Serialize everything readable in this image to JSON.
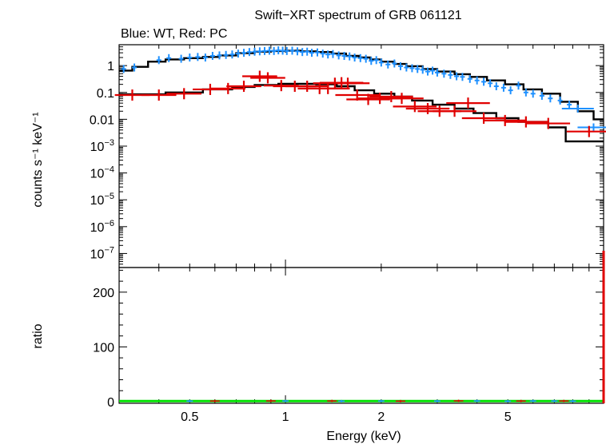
{
  "title": "Swift−XRT spectrum of GRB 061121",
  "subtitle": "Blue: WT, Red: PC",
  "colors": {
    "wt": "#1e90ff",
    "pc": "#e00000",
    "model": "#000000",
    "ratio_line": "#00e000"
  },
  "chart_data": [
    {
      "type": "scatter",
      "panel": "spectrum",
      "xlabel": "Energy (keV)",
      "ylabel": "counts s⁻¹ keV⁻¹",
      "xscale": "log",
      "yscale": "log",
      "xlim": [
        0.3,
        10
      ],
      "ylim": [
        3e-08,
        6
      ],
      "y_ticks": [
        {
          "value": 1,
          "label": "1"
        },
        {
          "value": 0.1,
          "label": "0.1"
        },
        {
          "value": 0.01,
          "label": "0.01"
        },
        {
          "value": 0.001,
          "base": "10",
          "exp": "−3"
        },
        {
          "value": 0.0001,
          "base": "10",
          "exp": "−4"
        },
        {
          "value": 1e-05,
          "base": "10",
          "exp": "−5"
        },
        {
          "value": 1e-06,
          "base": "10",
          "exp": "−6"
        },
        {
          "value": 1e-07,
          "base": "10",
          "exp": "−7"
        }
      ],
      "series": [
        {
          "name": "WT",
          "color": "#1e90ff",
          "points": [
            [
              0.31,
              0.75
            ],
            [
              0.335,
              0.85
            ],
            [
              0.4,
              1.6
            ],
            [
              0.43,
              1.9
            ],
            [
              0.47,
              1.8
            ],
            [
              0.5,
              2.0
            ],
            [
              0.53,
              2.1
            ],
            [
              0.56,
              2.0
            ],
            [
              0.59,
              2.3
            ],
            [
              0.62,
              2.4
            ],
            [
              0.65,
              2.5
            ],
            [
              0.68,
              2.6
            ],
            [
              0.71,
              2.8
            ],
            [
              0.74,
              3.0
            ],
            [
              0.77,
              3.2
            ],
            [
              0.8,
              3.3
            ],
            [
              0.83,
              3.4
            ],
            [
              0.86,
              3.5
            ],
            [
              0.89,
              3.6
            ],
            [
              0.92,
              3.5
            ],
            [
              0.95,
              3.7
            ],
            [
              0.98,
              3.6
            ],
            [
              1.01,
              3.5
            ],
            [
              1.05,
              3.6
            ],
            [
              1.09,
              3.4
            ],
            [
              1.13,
              3.2
            ],
            [
              1.17,
              3.3
            ],
            [
              1.21,
              3.0
            ],
            [
              1.26,
              3.1
            ],
            [
              1.31,
              2.8
            ],
            [
              1.36,
              2.6
            ],
            [
              1.41,
              2.7
            ],
            [
              1.47,
              2.4
            ],
            [
              1.53,
              2.3
            ],
            [
              1.59,
              2.2
            ],
            [
              1.65,
              2.0
            ],
            [
              1.72,
              1.9
            ],
            [
              1.79,
              1.8
            ],
            [
              1.86,
              1.5
            ],
            [
              1.93,
              1.6
            ],
            [
              2.0,
              1.3
            ],
            [
              2.1,
              1.1
            ],
            [
              2.2,
              1.2
            ],
            [
              2.3,
              0.95
            ],
            [
              2.4,
              0.85
            ],
            [
              2.5,
              0.8
            ],
            [
              2.6,
              0.75
            ],
            [
              2.7,
              0.7
            ],
            [
              2.8,
              0.6
            ],
            [
              2.9,
              0.65
            ],
            [
              3.0,
              0.55
            ],
            [
              3.15,
              0.5
            ],
            [
              3.3,
              0.45
            ],
            [
              3.45,
              0.4
            ],
            [
              3.6,
              0.38
            ],
            [
              3.8,
              0.32
            ],
            [
              4.0,
              0.28
            ],
            [
              4.2,
              0.25
            ],
            [
              4.4,
              0.22
            ],
            [
              4.6,
              0.17
            ],
            [
              4.85,
              0.15
            ],
            [
              5.1,
              0.12
            ],
            [
              5.4,
              0.18
            ],
            [
              5.7,
              0.1
            ],
            [
              6.0,
              0.09
            ],
            [
              6.4,
              0.075
            ],
            [
              6.8,
              0.06
            ],
            [
              7.3,
              0.05
            ],
            [
              7.8,
              0.035
            ],
            [
              8.3,
              0.025
            ],
            [
              9.3,
              0.005
            ]
          ]
        },
        {
          "name": "PC",
          "color": "#e00000",
          "points": [
            [
              0.33,
              0.08
            ],
            [
              0.4,
              0.08
            ],
            [
              0.48,
              0.09
            ],
            [
              0.58,
              0.13
            ],
            [
              0.66,
              0.14
            ],
            [
              0.74,
              0.17
            ],
            [
              0.83,
              0.4
            ],
            [
              0.88,
              0.35
            ],
            [
              0.97,
              0.18
            ],
            [
              1.07,
              0.17
            ],
            [
              1.17,
              0.17
            ],
            [
              1.28,
              0.14
            ],
            [
              1.36,
              0.14
            ],
            [
              1.43,
              0.22
            ],
            [
              1.5,
              0.23
            ],
            [
              1.57,
              0.22
            ],
            [
              1.68,
              0.08
            ],
            [
              1.82,
              0.055
            ],
            [
              1.98,
              0.06
            ],
            [
              2.15,
              0.07
            ],
            [
              2.32,
              0.06
            ],
            [
              2.55,
              0.03
            ],
            [
              2.8,
              0.025
            ],
            [
              3.05,
              0.02
            ],
            [
              3.4,
              0.02
            ],
            [
              3.75,
              0.04
            ],
            [
              4.2,
              0.011
            ],
            [
              4.9,
              0.009
            ],
            [
              5.7,
              0.008
            ],
            [
              6.7,
              0.007
            ],
            [
              9.0,
              0.0035
            ]
          ]
        }
      ],
      "model": {
        "name": "",
        "color": "#000000",
        "steps": [
          [
            0.3,
            0.65
          ],
          [
            0.33,
            0.9
          ],
          [
            0.37,
            1.4
          ],
          [
            0.42,
            1.7
          ],
          [
            0.48,
            1.9
          ],
          [
            0.55,
            2.1
          ],
          [
            0.62,
            2.4
          ],
          [
            0.7,
            2.9
          ],
          [
            0.8,
            3.3
          ],
          [
            0.9,
            3.5
          ],
          [
            1.0,
            3.6
          ],
          [
            1.12,
            3.4
          ],
          [
            1.25,
            3.2
          ],
          [
            1.4,
            2.8
          ],
          [
            1.55,
            2.3
          ],
          [
            1.7,
            2.0
          ],
          [
            1.85,
            1.7
          ],
          [
            2.0,
            1.4
          ],
          [
            2.2,
            1.15
          ],
          [
            2.4,
            0.95
          ],
          [
            2.7,
            0.75
          ],
          [
            3.0,
            0.6
          ],
          [
            3.4,
            0.48
          ],
          [
            3.8,
            0.38
          ],
          [
            4.3,
            0.28
          ],
          [
            4.9,
            0.2
          ],
          [
            5.6,
            0.13
          ],
          [
            6.4,
            0.09
          ],
          [
            7.3,
            0.045
          ],
          [
            8.3,
            0.02
          ],
          [
            9.3,
            0.01
          ]
        ]
      },
      "model_pc": {
        "name": "",
        "color": "#000000",
        "steps": [
          [
            0.3,
            0.085
          ],
          [
            0.42,
            0.1
          ],
          [
            0.55,
            0.13
          ],
          [
            0.68,
            0.16
          ],
          [
            0.8,
            0.19
          ],
          [
            0.95,
            0.21
          ],
          [
            1.1,
            0.21
          ],
          [
            1.25,
            0.2
          ],
          [
            1.45,
            0.17
          ],
          [
            1.65,
            0.12
          ],
          [
            1.9,
            0.09
          ],
          [
            2.2,
            0.07
          ],
          [
            2.5,
            0.05
          ],
          [
            2.9,
            0.035
          ],
          [
            3.4,
            0.025
          ],
          [
            3.9,
            0.017
          ],
          [
            4.6,
            0.011
          ],
          [
            5.4,
            0.008
          ],
          [
            6.7,
            0.005
          ],
          [
            7.6,
            0.0015
          ],
          [
            9.3,
            0.0015
          ]
        ]
      }
    },
    {
      "type": "scatter",
      "panel": "ratio",
      "xlabel": "Energy (keV)",
      "ylabel": "ratio",
      "xscale": "log",
      "xlim": [
        0.3,
        10
      ],
      "ylim": [
        -3,
        245
      ],
      "y_ticks": [
        {
          "value": 0,
          "label": "0"
        },
        {
          "value": 100,
          "label": "100"
        },
        {
          "value": 200,
          "label": "200"
        }
      ],
      "x_ticks": [
        {
          "value": 0.5,
          "label": "0.5"
        },
        {
          "value": 1,
          "label": "1"
        },
        {
          "value": 2,
          "label": "2"
        },
        {
          "value": 5,
          "label": "5"
        }
      ],
      "reference_line": 1,
      "series": [
        {
          "name": "WT",
          "color": "#1e90ff",
          "points": [
            [
              0.5,
              1
            ],
            [
              1,
              1.2
            ],
            [
              1.5,
              0.9
            ],
            [
              2,
              1.1
            ],
            [
              3,
              1
            ],
            [
              4,
              1.3
            ],
            [
              5,
              0.8
            ],
            [
              6,
              1.2
            ],
            [
              7,
              1.1
            ],
            [
              8,
              0.9
            ]
          ]
        },
        {
          "name": "PC",
          "color": "#e00000",
          "points": [
            [
              0.6,
              1.1
            ],
            [
              0.9,
              1.3
            ],
            [
              1.4,
              1.2
            ],
            [
              2.3,
              0.9
            ],
            [
              3.5,
              1.4
            ],
            [
              5.5,
              1.1
            ],
            [
              7.5,
              1.2
            ]
          ]
        }
      ]
    }
  ]
}
